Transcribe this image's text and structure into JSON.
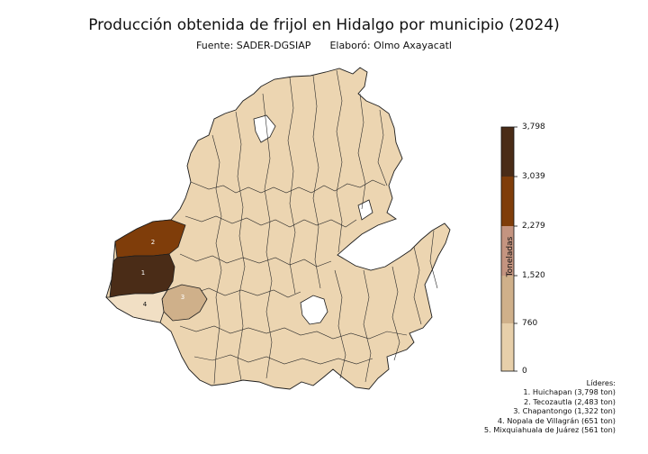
{
  "title": "Producción obtenida de frijol en Hidalgo por municipio (2024)",
  "source": "Fuente: SADER-DGSIAP",
  "author": "Elaboró: Olmo Axayacatl",
  "colorbar": {
    "label": "Toneladas",
    "ticks": [
      "3,798",
      "3,039",
      "2,279",
      "1,520",
      "760",
      "0"
    ],
    "colors": [
      "#4a2c17",
      "#7f3d0a",
      "#c49480",
      "#cfb08a",
      "#e7cfaa"
    ]
  },
  "leaders": {
    "heading": "Líderes:",
    "items": [
      "1. Huichapan (3,798 ton)",
      "2. Tecozautla (2,483 ton)",
      "3. Chapantongo (1,322 ton)",
      "4. Nopala de Villagrán (651 ton)",
      "5. Mixquiahuala de Juárez (561 ton)"
    ]
  },
  "map_labels": [
    "1",
    "2",
    "3",
    "4"
  ],
  "colors": {
    "base": "#ecd5b1",
    "huichapan": "#4a2c17",
    "tecozautla": "#7f3d0a",
    "chapantongo": "#cfb08a",
    "nopala": "#f1dfc4",
    "border": "#1e1e1e"
  }
}
